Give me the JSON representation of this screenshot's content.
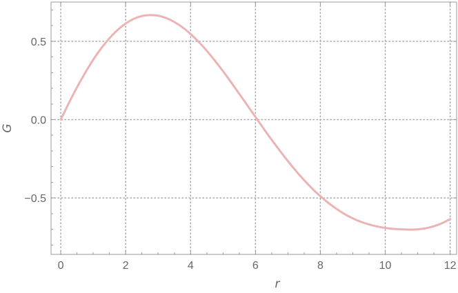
{
  "chart_data": {
    "type": "line",
    "xlabel": "r",
    "ylabel": "G",
    "xlim": [
      -0.3,
      12.2
    ],
    "ylim": [
      -0.86,
      0.75
    ],
    "grid": true,
    "legend": "none",
    "colors": {
      "series": "#ebb3b3",
      "grid": "#a8a8a8",
      "axis": "#9a9a9a",
      "text": "#666666"
    },
    "x_ticks": [
      {
        "value": 0,
        "label": "0"
      },
      {
        "value": 2,
        "label": "2"
      },
      {
        "value": 4,
        "label": "4"
      },
      {
        "value": 6,
        "label": "6"
      },
      {
        "value": 8,
        "label": "8"
      },
      {
        "value": 10,
        "label": "10"
      },
      {
        "value": 12,
        "label": "12"
      }
    ],
    "y_ticks": [
      {
        "value": 0.5,
        "label": "0.5"
      },
      {
        "value": 0.0,
        "label": "0.0"
      },
      {
        "value": -0.5,
        "label": "−0.5"
      }
    ],
    "series": [
      {
        "x": [
          0,
          0.25,
          0.5,
          0.75,
          1,
          1.25,
          1.5,
          1.75,
          2,
          2.25,
          2.5,
          2.75,
          3,
          3.25,
          3.5,
          3.75,
          4,
          4.25,
          4.5,
          4.75,
          5,
          5.25,
          5.5,
          5.75,
          6,
          6.25,
          6.5,
          6.75,
          7,
          7.25,
          7.5,
          7.75,
          8,
          8.25,
          8.5,
          8.75,
          9,
          9.25,
          9.5,
          9.75,
          10,
          10.25,
          10.5,
          10.75,
          11,
          11.25,
          11.5,
          11.75,
          12
        ],
        "y": [
          0,
          0.106,
          0.206,
          0.298,
          0.382,
          0.456,
          0.519,
          0.572,
          0.613,
          0.643,
          0.661,
          0.667,
          0.663,
          0.648,
          0.623,
          0.589,
          0.546,
          0.496,
          0.439,
          0.376,
          0.309,
          0.238,
          0.165,
          0.091,
          0.017,
          -0.057,
          -0.129,
          -0.198,
          -0.265,
          -0.328,
          -0.386,
          -0.44,
          -0.489,
          -0.532,
          -0.57,
          -0.603,
          -0.63,
          -0.652,
          -0.669,
          -0.682,
          -0.691,
          -0.697,
          -0.7,
          -0.702,
          -0.7,
          -0.693,
          -0.68,
          -0.661,
          -0.635
        ]
      }
    ]
  }
}
